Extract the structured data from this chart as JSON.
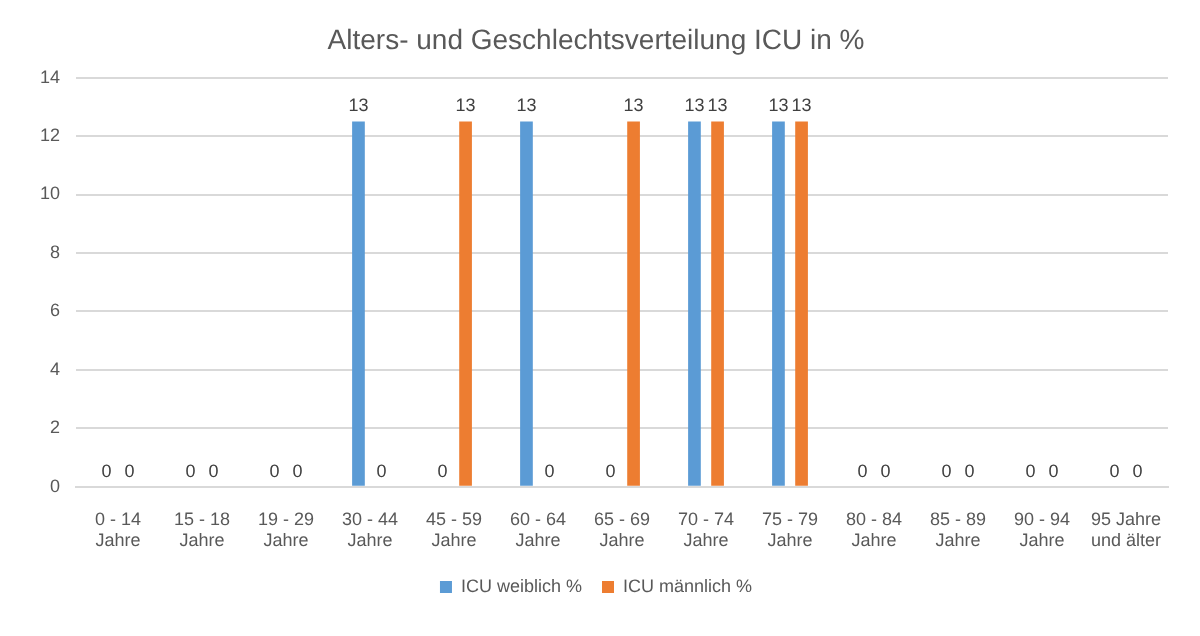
{
  "chart_data": {
    "type": "bar",
    "title": "Alters- und Geschlechtsverteilung ICU in %",
    "categories": [
      "0 - 14 Jahre",
      "15 - 18 Jahre",
      "19 - 29 Jahre",
      "30 - 44 Jahre",
      "45 - 59 Jahre",
      "60 - 64 Jahre",
      "65 - 69 Jahre",
      "70 - 74 Jahre",
      "75 - 79 Jahre",
      "80 - 84 Jahre",
      "85 - 89 Jahre",
      "90 - 94 Jahre",
      "95 Jahre und älter"
    ],
    "series": [
      {
        "name": "ICU weiblich %",
        "color": "#5b9bd5",
        "values": [
          0,
          0,
          0,
          12.5,
          0,
          12.5,
          0,
          12.5,
          12.5,
          0,
          0,
          0,
          0
        ],
        "value_labels": [
          "0",
          "0",
          "0",
          "13",
          "0",
          "13",
          "0",
          "13",
          "13",
          "0",
          "0",
          "0",
          "0"
        ]
      },
      {
        "name": "ICU männlich %",
        "color": "#ed7d31",
        "values": [
          0,
          0,
          0,
          0,
          12.5,
          0,
          12.5,
          12.5,
          12.5,
          0,
          0,
          0,
          0
        ],
        "value_labels": [
          "0",
          "0",
          "0",
          "0",
          "13",
          "0",
          "13",
          "13",
          "13",
          "0",
          "0",
          "0",
          "0"
        ]
      }
    ],
    "ylim": [
      0,
      14
    ],
    "yticks": [
      0,
      2,
      4,
      6,
      8,
      10,
      12,
      14
    ],
    "grid": "y",
    "legend": "bottom"
  }
}
